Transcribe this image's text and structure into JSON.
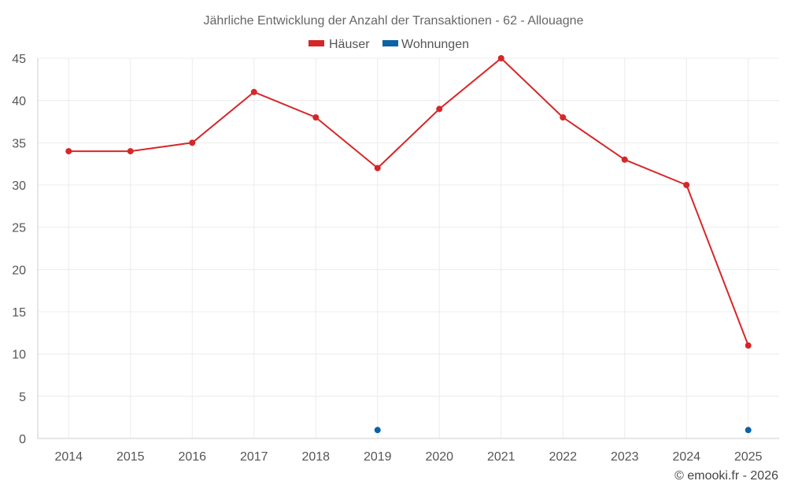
{
  "chart_data": {
    "type": "line",
    "title": "Jährliche Entwicklung der Anzahl der Transaktionen - 62 - Allouagne",
    "xlabel": "",
    "ylabel": "",
    "categories": [
      "2014",
      "2015",
      "2016",
      "2017",
      "2018",
      "2019",
      "2020",
      "2021",
      "2022",
      "2023",
      "2024",
      "2025"
    ],
    "ylim": [
      0,
      45
    ],
    "yticks": [
      0,
      5,
      10,
      15,
      20,
      25,
      30,
      35,
      40,
      45
    ],
    "grid": true,
    "legend_position": "top-center",
    "series": [
      {
        "name": "Häuser",
        "color": "#d62728",
        "values": [
          34,
          34,
          35,
          41,
          38,
          32,
          39,
          45,
          38,
          33,
          30,
          11
        ]
      },
      {
        "name": "Wohnungen",
        "color": "#0b62a4",
        "values": [
          null,
          null,
          null,
          null,
          null,
          1,
          null,
          null,
          null,
          null,
          null,
          1
        ]
      }
    ]
  },
  "credit": "© emooki.fr - 2026"
}
